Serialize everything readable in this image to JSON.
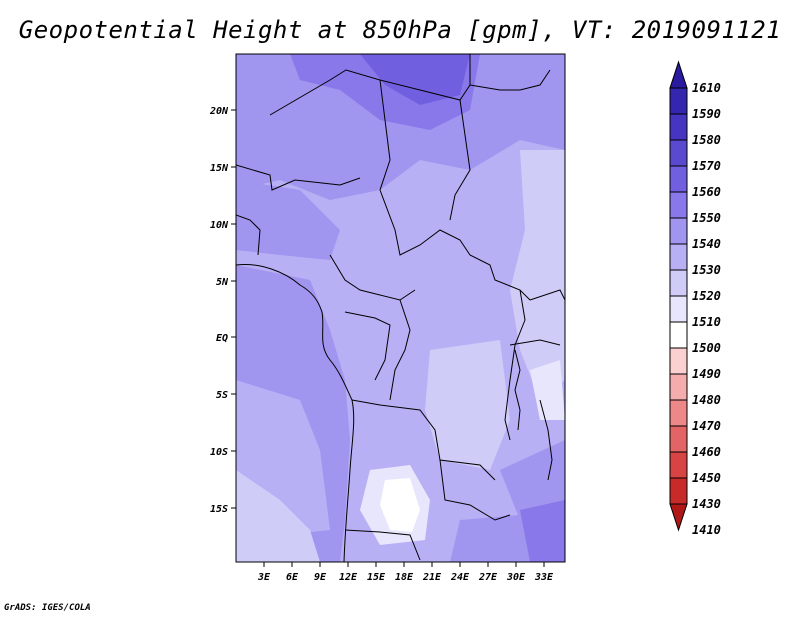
{
  "title": "Geopotential Height at 850hPa [gpm], VT: 2019091121",
  "credit": "GrADS: IGES/COLA",
  "map": {
    "lat_labels": [
      "20N",
      "15N",
      "10N",
      "5N",
      "EQ",
      "5S",
      "10S",
      "15S"
    ],
    "lon_labels": [
      "3E",
      "6E",
      "9E",
      "12E",
      "15E",
      "18E",
      "21E",
      "24E",
      "27E",
      "30E",
      "33E"
    ]
  },
  "colorbar": {
    "levels": [
      "1610",
      "1590",
      "1580",
      "1570",
      "1560",
      "1550",
      "1540",
      "1530",
      "1520",
      "1510",
      "1500",
      "1490",
      "1480",
      "1470",
      "1460",
      "1450",
      "1430",
      "1410"
    ],
    "colors": [
      "#2a1aa0",
      "#3526b0",
      "#4535c0",
      "#5a4ad0",
      "#7060e0",
      "#8878ea",
      "#a095ef",
      "#b8b0f4",
      "#d0ccf8",
      "#e8e6fc",
      "#ffffff",
      "#fbd0d0",
      "#f4acac",
      "#ec8888",
      "#e26464",
      "#d84444",
      "#c82a2a",
      "#b01818"
    ]
  }
}
